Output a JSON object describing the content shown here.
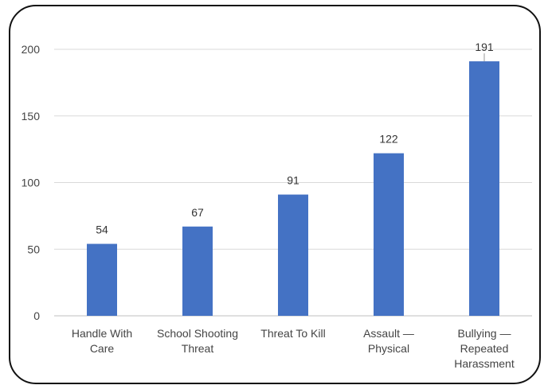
{
  "chart_data": {
    "type": "bar",
    "categories": [
      [
        "Handle With",
        "Care"
      ],
      [
        "School Shooting",
        "Threat"
      ],
      [
        "Threat To Kill"
      ],
      [
        "Assault —",
        "Physical"
      ],
      [
        "Bullying —",
        "Repeated",
        "Harassment"
      ]
    ],
    "values": [
      54,
      67,
      91,
      122,
      191
    ],
    "data_labels": [
      "54",
      "67",
      "91",
      "122",
      "191"
    ],
    "y_ticks": [
      "0",
      "50",
      "100",
      "150",
      "200"
    ],
    "ylim": [
      0,
      200
    ],
    "bar_color": "#4472C4",
    "grid": true,
    "legend": "none"
  }
}
